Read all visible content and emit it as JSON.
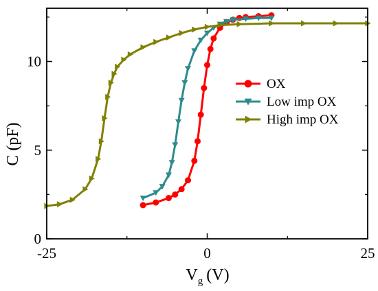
{
  "chart_data": {
    "type": "line",
    "xlabel": "V",
    "xlabel_sub": "g",
    "xlabel_unit": "(V)",
    "ylabel": "C (pF)",
    "xlim": [
      -25,
      25
    ],
    "ylim": [
      0,
      13
    ],
    "xticks": [
      -25,
      0,
      25
    ],
    "xtick_labels": [
      "-25",
      "0",
      "25"
    ],
    "yticks": [
      0,
      5,
      10
    ],
    "ytick_labels": [
      "0",
      "5",
      "10"
    ],
    "grid": false,
    "legend_position": "center-right",
    "series": [
      {
        "name": "OX",
        "color": "#ff0000",
        "marker": "circle",
        "x": [
          -10,
          -8,
          -6,
          -5,
          -4,
          -3,
          -2,
          -1.5,
          -1,
          -0.5,
          0,
          0.5,
          1,
          2,
          3,
          4,
          5,
          6,
          8,
          10
        ],
        "y": [
          1.9,
          2.05,
          2.3,
          2.5,
          2.8,
          3.3,
          4.4,
          5.5,
          7.0,
          8.5,
          9.8,
          10.7,
          11.3,
          11.9,
          12.2,
          12.35,
          12.45,
          12.5,
          12.55,
          12.6
        ]
      },
      {
        "name": "Low imp OX",
        "color": "#2e8b8b",
        "marker": "triangle-down",
        "x": [
          -10,
          -8,
          -7,
          -6,
          -5.5,
          -5,
          -4.5,
          -4,
          -3.5,
          -3,
          -2,
          -1,
          0,
          1,
          2,
          3,
          4,
          6,
          8,
          10
        ],
        "y": [
          2.3,
          2.6,
          2.95,
          3.6,
          4.3,
          5.3,
          6.6,
          7.8,
          8.8,
          9.6,
          10.6,
          11.2,
          11.6,
          11.9,
          12.1,
          12.25,
          12.35,
          12.4,
          12.45,
          12.45
        ]
      },
      {
        "name": "High imp OX",
        "color": "#808000",
        "marker": "triangle-right",
        "x": [
          -25,
          -23,
          -21,
          -19,
          -18,
          -17,
          -16.5,
          -16,
          -15.5,
          -15,
          -14.5,
          -14,
          -13,
          -12,
          -10,
          -8,
          -6,
          -4,
          -2,
          0,
          2,
          5,
          10,
          15,
          20,
          25
        ],
        "y": [
          1.85,
          1.95,
          2.2,
          2.8,
          3.4,
          4.5,
          5.5,
          6.8,
          8.0,
          8.8,
          9.3,
          9.7,
          10.1,
          10.4,
          10.8,
          11.1,
          11.35,
          11.6,
          11.8,
          11.95,
          12.05,
          12.1,
          12.15,
          12.15,
          12.15,
          12.15
        ]
      }
    ]
  }
}
